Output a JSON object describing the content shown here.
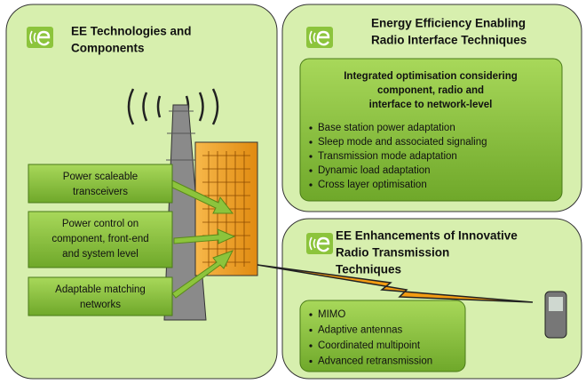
{
  "panels": [
    {
      "title": [
        "EE Technologies and",
        "Components"
      ],
      "boxes": [
        [
          "Power scaleable",
          "transceivers"
        ],
        [
          "Power control on",
          "component, front-end",
          "and system level"
        ],
        [
          "Adaptable matching",
          "networks"
        ]
      ]
    },
    {
      "title": [
        "Energy Efficiency Enabling",
        "Radio Interface Techniques"
      ],
      "heading": [
        "Integrated optimisation considering",
        "component, radio and",
        "interface to network-level"
      ],
      "bullets": [
        "Base station power adaptation",
        "Sleep mode and associated signaling",
        "Transmission mode adaptation",
        "Dynamic load adaptation",
        "Cross layer optimisation"
      ]
    },
    {
      "title": [
        "EE Enhancements of Innovative",
        "Radio Transmission",
        "Techniques"
      ],
      "bullets": [
        "MIMO",
        "Adaptive antennas",
        "Coordinated multipoint",
        "Advanced retransmission"
      ]
    }
  ]
}
